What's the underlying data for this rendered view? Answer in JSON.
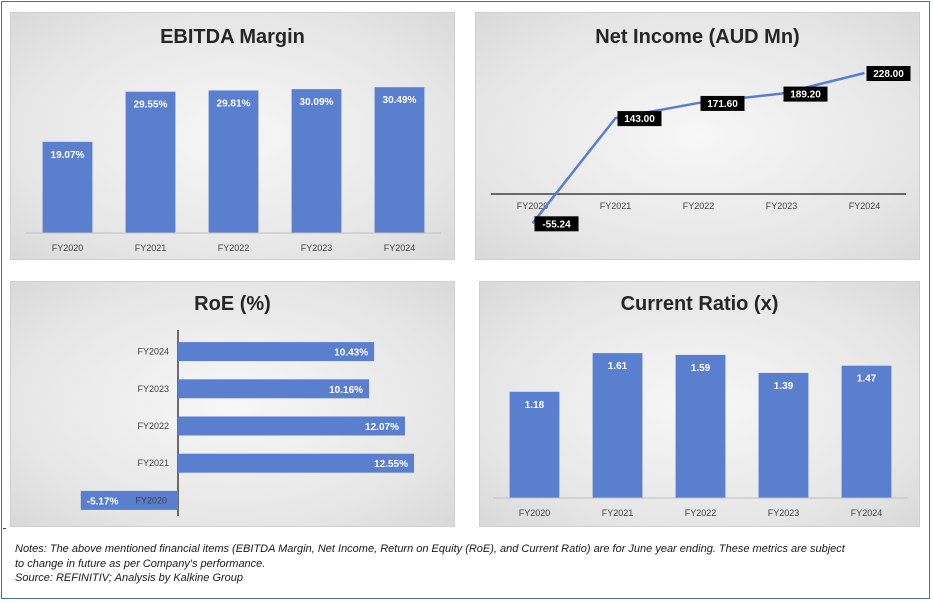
{
  "chart_data": [
    {
      "type": "bar",
      "title": "EBITDA Margin",
      "categories": [
        "FY2020",
        "FY2021",
        "FY2022",
        "FY2023",
        "FY2024"
      ],
      "values": [
        19.07,
        29.55,
        29.81,
        30.09,
        30.49
      ],
      "labels": [
        "19.07%",
        "29.55%",
        "29.81%",
        "30.09%",
        "30.49%"
      ],
      "ylim": [
        0,
        32
      ],
      "bar_color": "#5b7fcf"
    },
    {
      "type": "line",
      "title": "Net Income (AUD Mn)",
      "categories": [
        "FY2020",
        "FY2021",
        "FY2022",
        "FY2023",
        "FY2024"
      ],
      "values": [
        -55.24,
        143.0,
        171.6,
        189.2,
        228.0
      ],
      "labels": [
        "-55.24",
        "143.00",
        "171.60",
        "189.20",
        "228.00"
      ],
      "ylim": [
        -70,
        260
      ],
      "line_color": "#5b7fcf"
    },
    {
      "type": "bar",
      "orientation": "horizontal",
      "title": "RoE (%)",
      "categories": [
        "FY2024",
        "FY2023",
        "FY2022",
        "FY2021",
        "FY2020"
      ],
      "values": [
        10.43,
        10.16,
        12.07,
        12.55,
        -5.17
      ],
      "labels": [
        "10.43%",
        "10.16%",
        "12.07%",
        "12.55%",
        "-5.17%"
      ],
      "xlim": [
        -6,
        13
      ],
      "bar_color": "#5b7fcf"
    },
    {
      "type": "bar",
      "title": "Current Ratio (x)",
      "categories": [
        "FY2020",
        "FY2021",
        "FY2022",
        "FY2023",
        "FY2024"
      ],
      "values": [
        1.18,
        1.61,
        1.59,
        1.39,
        1.47
      ],
      "labels": [
        "1.18",
        "1.61",
        "1.59",
        "1.39",
        "1.47"
      ],
      "ylim": [
        0,
        1.7
      ],
      "bar_color": "#5b7fcf"
    }
  ],
  "notes": {
    "line1": "Notes: The above mentioned financial items (EBITDA Margin, Net Income, Return on Equity (RoE), and Current Ratio) are for June year ending. These metrics are subject",
    "line2": "to change in future as per Company's performance.",
    "line3": "Source: REFINITIV; Analysis by Kalkine Group"
  }
}
